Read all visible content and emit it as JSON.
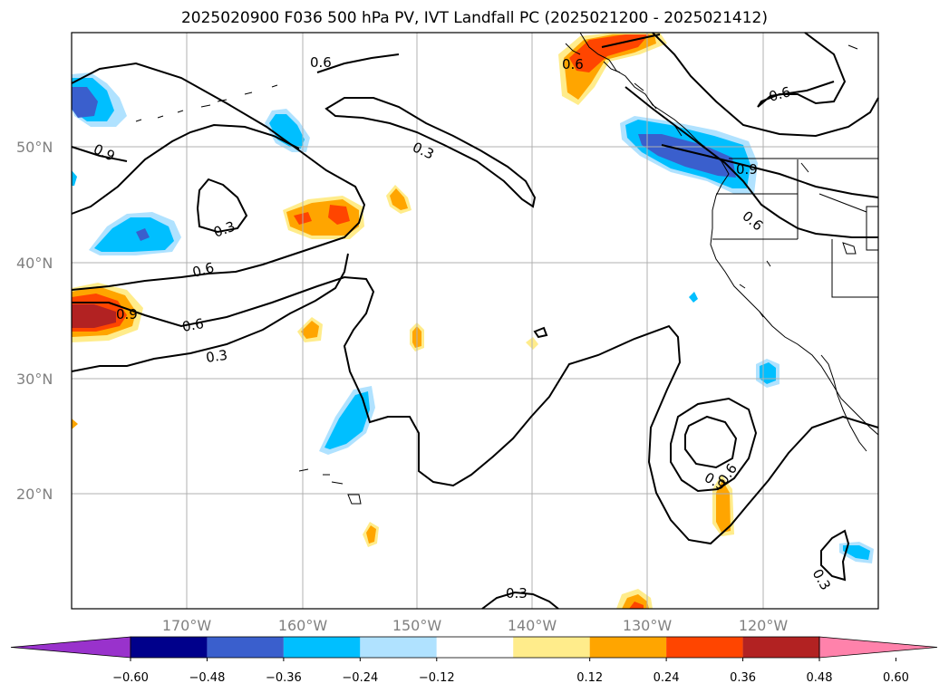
{
  "title": "2025020900 F036 500 hPa PV, IVT Landfall PC (2025021200 - 2025021412)",
  "map": {
    "lat_labels": [
      "50°N",
      "40°N",
      "30°N",
      "20°N"
    ],
    "lon_labels": [
      "170°W",
      "160°W",
      "150°W",
      "140°W",
      "130°W",
      "120°W"
    ],
    "contour_labels": [
      "0.6",
      "0.6",
      "0.3",
      "0.9",
      "0.3",
      "0.6",
      "0.6",
      "0.3",
      "0.9",
      "0.6",
      "0.9",
      "0.9",
      "0.6",
      "0.3",
      "0.3",
      "0.6",
      "0.9",
      "0.6"
    ]
  },
  "colorbar": {
    "ticks": [
      "−0.60",
      "−0.48",
      "−0.36",
      "−0.24",
      "−0.12",
      "0.12",
      "0.24",
      "0.36",
      "0.48",
      "0.60"
    ],
    "colors": {
      "lt_-0.60": "#9932cc",
      "-0.60_-0.48": "#00008b",
      "-0.48_-0.36": "#3a5fcd",
      "-0.36_-0.24": "#00bfff",
      "-0.24_-0.12": "#b0e2ff",
      "-0.12_0.12": "#ffffff",
      "0.12_0.24": "#ffec8b",
      "0.24_0.36": "#ffa500",
      "0.36_0.48": "#ff4500",
      "0.48_0.60": "#b22222",
      "gt_0.60": "#ff82ab"
    }
  }
}
